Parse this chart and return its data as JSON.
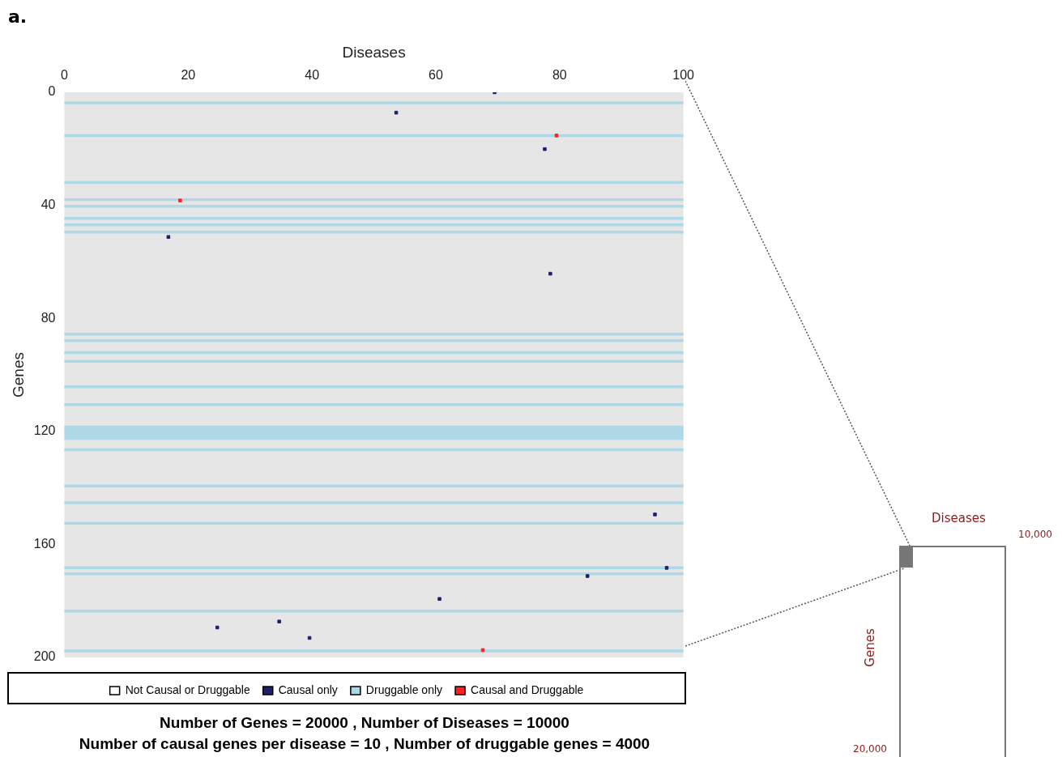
{
  "chart_data": {
    "type": "scatter",
    "xlabel": "Diseases",
    "ylabel": "Genes",
    "xlim": [
      0,
      100
    ],
    "xticks": [
      0,
      20,
      40,
      60,
      80,
      100
    ],
    "ylim": [
      200,
      0
    ],
    "yticks": [
      0,
      40,
      80,
      120,
      160,
      200
    ],
    "marker": "square",
    "legend": "bottom",
    "series": [
      {
        "name": "Not Causal or Druggable",
        "color": "#ffffff"
      },
      {
        "name": "Causal only",
        "color": "#1f1f6e",
        "x": [
          69.5,
          53.6,
          77.6,
          16.8,
          78.5,
          95.4,
          97.3,
          84.5,
          60.6,
          34.7,
          24.7,
          39.6
        ],
        "values": [
          0,
          7.2,
          20.1,
          51.2,
          64.2,
          149.4,
          168.3,
          171.2,
          179.3,
          187.3,
          189.4,
          193.1
        ]
      },
      {
        "name": "Causal and Druggable",
        "color": "#ff2020",
        "x": [
          79.5,
          18.7,
          67.6
        ],
        "values": [
          15.3,
          38.3,
          197.4
        ]
      }
    ],
    "bands": [
      {
        "axis": "y",
        "from": 3.2,
        "to": 4.2,
        "label": "Druggable only",
        "color": "#add8e6"
      },
      {
        "axis": "y",
        "from": 14.8,
        "to": 15.8,
        "color": "#add8e6"
      },
      {
        "axis": "y",
        "from": 31.4,
        "to": 32.4,
        "color": "#add8e6"
      },
      {
        "axis": "y",
        "from": 37.5,
        "to": 38.5,
        "color": "#add8e6"
      },
      {
        "axis": "y",
        "from": 39.8,
        "to": 40.8,
        "color": "#add8e6"
      },
      {
        "axis": "y",
        "from": 44.1,
        "to": 45.1,
        "color": "#add8e6"
      },
      {
        "axis": "y",
        "from": 46.4,
        "to": 47.4,
        "color": "#add8e6"
      },
      {
        "axis": "y",
        "from": 49,
        "to": 50,
        "color": "#add8e6"
      },
      {
        "axis": "y",
        "from": 85.1,
        "to": 86.1,
        "color": "#add8e6"
      },
      {
        "axis": "y",
        "from": 87.4,
        "to": 88.4,
        "color": "#add8e6"
      },
      {
        "axis": "y",
        "from": 91.6,
        "to": 92.6,
        "color": "#add8e6"
      },
      {
        "axis": "y",
        "from": 94.7,
        "to": 95.7,
        "color": "#add8e6"
      },
      {
        "axis": "y",
        "from": 103.7,
        "to": 104.7,
        "color": "#add8e6"
      },
      {
        "axis": "y",
        "from": 110,
        "to": 111,
        "color": "#add8e6"
      },
      {
        "axis": "y",
        "from": 118,
        "to": 123,
        "color": "#add8e6"
      },
      {
        "axis": "y",
        "from": 126,
        "to": 127,
        "color": "#add8e6"
      },
      {
        "axis": "y",
        "from": 138.8,
        "to": 139.8,
        "color": "#add8e6"
      },
      {
        "axis": "y",
        "from": 144.8,
        "to": 145.8,
        "color": "#add8e6"
      },
      {
        "axis": "y",
        "from": 152,
        "to": 153,
        "color": "#add8e6"
      },
      {
        "axis": "y",
        "from": 167.8,
        "to": 168.8,
        "color": "#add8e6"
      },
      {
        "axis": "y",
        "from": 169.9,
        "to": 170.9,
        "color": "#add8e6"
      },
      {
        "axis": "y",
        "from": 183.1,
        "to": 184.1,
        "color": "#add8e6"
      },
      {
        "axis": "y",
        "from": 197.2,
        "to": 198.2,
        "color": "#add8e6"
      }
    ],
    "annotations": [
      "a.",
      "Number of Genes =  20000 , Number of Diseases =  10000",
      "Number of causal genes per disease =  10 , Number of druggable genes =  4000",
      "Diseases",
      "10,000",
      "Genes",
      "20,000"
    ]
  }
}
